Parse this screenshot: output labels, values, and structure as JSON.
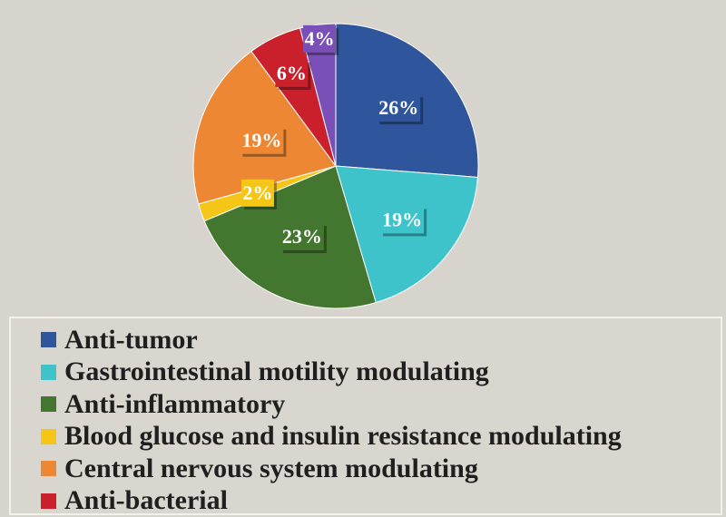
{
  "chart_data": {
    "type": "pie",
    "start_angle_deg": 0,
    "direction": "clockwise",
    "slices": [
      {
        "name": "Anti-tumor",
        "value": 26,
        "label": "26%",
        "color": "#2f559d"
      },
      {
        "name": "Gastrointestinal motility modulating",
        "value": 19,
        "label": "19%",
        "color": "#3fc3cb"
      },
      {
        "name": "Anti-inflammatory",
        "value": 23,
        "label": "23%",
        "color": "#43772f"
      },
      {
        "name": "Blood glucose and insulin resistance modulating",
        "value": 2,
        "label": "2%",
        "color": "#f5c518"
      },
      {
        "name": "Central nervous system modulating",
        "value": 19,
        "label": "19%",
        "color": "#ee8733"
      },
      {
        "name": "Anti-bacterial",
        "value": 6,
        "label": "6%",
        "color": "#c9202c"
      },
      {
        "name": "",
        "value": 4,
        "label": "4%",
        "color": "#7b4fb8"
      }
    ],
    "legend": {
      "placement": "bottom",
      "entries": [
        {
          "label": "Anti-tumor",
          "color": "#2f559d"
        },
        {
          "label": "Gastrointestinal motility modulating",
          "color": "#3fc3cb"
        },
        {
          "label": "Anti-inflammatory",
          "color": "#43772f"
        },
        {
          "label": "Blood glucose and insulin resistance modulating",
          "color": "#f5c518"
        },
        {
          "label": "Central nervous system modulating",
          "color": "#ee8733"
        },
        {
          "label": "Anti-bacterial",
          "color": "#c9202c"
        }
      ]
    }
  }
}
